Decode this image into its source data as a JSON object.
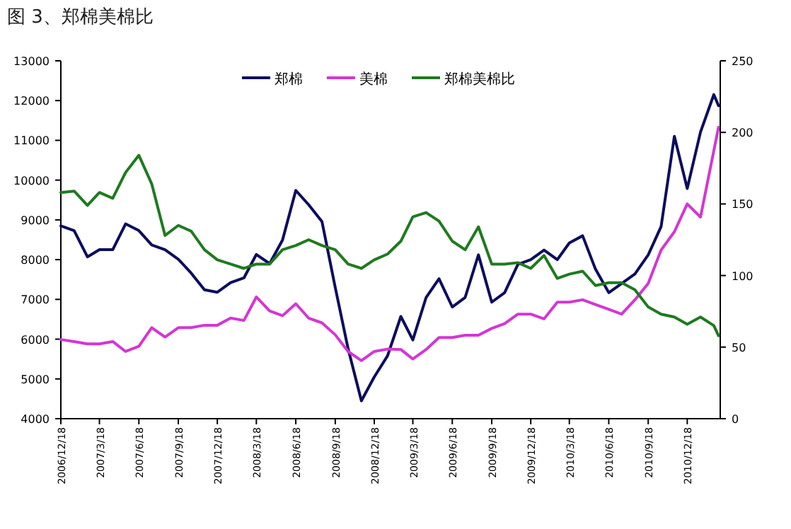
{
  "chart_data": {
    "type": "line",
    "title": "图 3、郑棉美棉比",
    "x": [
      "2006-12-18",
      "2007-01-18",
      "2007-02-18",
      "2007-03-18",
      "2007-04-18",
      "2007-05-18",
      "2007-06-18",
      "2007-07-18",
      "2007-08-18",
      "2007-09-18",
      "2007-10-18",
      "2007-11-18",
      "2007-12-18",
      "2008-01-18",
      "2008-02-18",
      "2008-03-18",
      "2008-04-18",
      "2008-05-18",
      "2008-06-18",
      "2008-07-18",
      "2008-08-18",
      "2008-09-18",
      "2008-10-18",
      "2008-11-18",
      "2008-12-18",
      "2009-01-18",
      "2009-02-18",
      "2009-03-18",
      "2009-04-18",
      "2009-05-18",
      "2009-06-18",
      "2009-07-18",
      "2009-08-18",
      "2009-09-18",
      "2009-10-18",
      "2009-11-18",
      "2009-12-18",
      "2010-01-18",
      "2010-02-18",
      "2010-03-18",
      "2010-04-18",
      "2010-05-18",
      "2010-06-18",
      "2010-07-18",
      "2010-08-18",
      "2010-09-18",
      "2010-10-18",
      "2010-11-18",
      "2010-12-18",
      "2011-01-18",
      "2011-02-18",
      "2011-03-01"
    ],
    "series": [
      {
        "name": "郑棉",
        "color": "#0d0d5e",
        "values": [
          8850,
          8730,
          8070,
          8250,
          8250,
          8900,
          8730,
          8370,
          8250,
          8010,
          7660,
          7240,
          7180,
          7420,
          7540,
          8130,
          7900,
          8490,
          9740,
          9380,
          8960,
          7300,
          5760,
          4450,
          5050,
          5580,
          6570,
          5980,
          7050,
          7520,
          6810,
          7050,
          8120,
          6930,
          7170,
          7880,
          8000,
          8240,
          8000,
          8420,
          8600,
          7760,
          7170,
          7400,
          7640,
          8120,
          8830,
          11100,
          9790,
          11210,
          12150,
          11870
        ]
      },
      {
        "name": "美棉",
        "color": "#d436d4",
        "values": [
          5990,
          5940,
          5880,
          5880,
          5940,
          5690,
          5820,
          6290,
          6050,
          6290,
          6290,
          6350,
          6350,
          6530,
          6470,
          7060,
          6710,
          6590,
          6890,
          6530,
          6410,
          6110,
          5690,
          5460,
          5690,
          5750,
          5740,
          5500,
          5740,
          6040,
          6040,
          6100,
          6100,
          6270,
          6390,
          6630,
          6630,
          6510,
          6930,
          6930,
          6990,
          6870,
          6750,
          6630,
          6990,
          7400,
          8240,
          8700,
          9400,
          9070,
          10740,
          11330
        ]
      },
      {
        "name": "郑棉美棉比",
        "color": "#1f7a1f",
        "axis": "y2",
        "values": [
          158,
          159,
          149,
          158,
          154,
          172,
          184,
          164,
          128,
          135,
          131,
          118,
          111,
          108,
          105,
          108,
          108,
          118,
          121,
          125,
          121,
          118,
          108,
          105,
          111,
          115,
          124,
          141,
          144,
          138,
          124,
          118,
          134,
          108,
          108,
          109,
          105,
          114,
          98,
          101,
          103,
          93,
          95,
          95,
          90,
          78,
          73,
          71,
          66,
          71,
          65,
          58
        ]
      }
    ],
    "xlim": [
      "2006-12-18",
      "2011-03-05"
    ],
    "xticks": [
      {
        "value": "2006-12-18",
        "label": "2006/12/18"
      },
      {
        "value": "2007-03-18",
        "label": "2007/3/18"
      },
      {
        "value": "2007-06-18",
        "label": "2007/6/18"
      },
      {
        "value": "2007-09-18",
        "label": "2007/9/18"
      },
      {
        "value": "2007-12-18",
        "label": "2007/12/18"
      },
      {
        "value": "2008-03-18",
        "label": "2008/3/18"
      },
      {
        "value": "2008-06-18",
        "label": "2008/6/18"
      },
      {
        "value": "2008-09-18",
        "label": "2008/9/18"
      },
      {
        "value": "2008-12-18",
        "label": "2008/12/18"
      },
      {
        "value": "2009-03-18",
        "label": "2009/3/18"
      },
      {
        "value": "2009-06-18",
        "label": "2009/6/18"
      },
      {
        "value": "2009-09-18",
        "label": "2009/9/18"
      },
      {
        "value": "2009-12-18",
        "label": "2009/12/18"
      },
      {
        "value": "2010-03-18",
        "label": "2010/3/18"
      },
      {
        "value": "2010-06-18",
        "label": "2010/6/18"
      },
      {
        "value": "2010-09-18",
        "label": "2010/9/18"
      },
      {
        "value": "2010-12-18",
        "label": "2010/12/18"
      }
    ],
    "ylim": [
      4000,
      13000
    ],
    "yticks": [
      4000,
      5000,
      6000,
      7000,
      8000,
      9000,
      10000,
      11000,
      12000,
      13000
    ],
    "y2lim": [
      0,
      250
    ],
    "y2ticks": [
      0,
      50,
      100,
      150,
      200,
      250
    ],
    "grid": false,
    "legend": "top",
    "marker": "none",
    "line_style": "solid"
  }
}
